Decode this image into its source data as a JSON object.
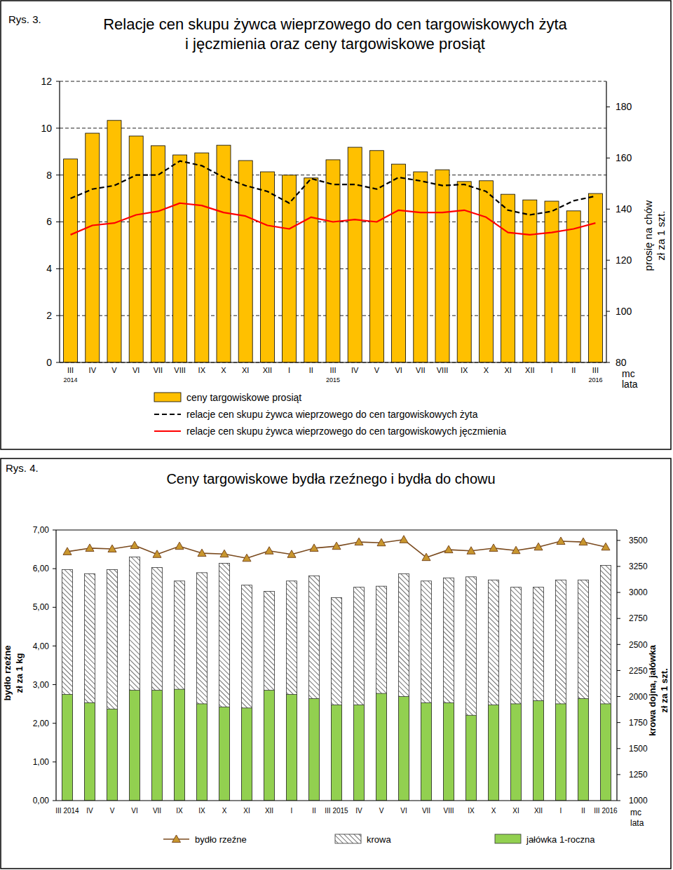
{
  "chart_data": [
    {
      "type": "bar",
      "annotation": "Rys. 3.",
      "title": [
        "Relacje cen skupu żywca wieprzowego do cen targowiskowych żyta",
        "i jęczmienia oraz ceny targowiskowe prosiąt"
      ],
      "categories": [
        "III 2014",
        "IV",
        "V",
        "VI",
        "VII",
        "VIII",
        "IX",
        "X",
        "XI",
        "XII",
        "I",
        "II",
        "III 2015",
        "IV",
        "V",
        "VI",
        "VII",
        "VIII",
        "IX",
        "X",
        "XI",
        "XII",
        "I",
        "II",
        "III 2016"
      ],
      "xlabel": "mc lata",
      "ylim": [
        0,
        12
      ],
      "yticks": [
        0,
        2,
        4,
        6,
        8,
        10,
        12
      ],
      "y2lim": [
        80,
        190
      ],
      "y2ticks": [
        80,
        100,
        120,
        140,
        160,
        180
      ],
      "y2label": [
        "prosię na chów",
        "zł za 1 szt."
      ],
      "grid": true,
      "legend": "bottom",
      "series": [
        {
          "name": "ceny targowiskowe prosiąt",
          "type": "bar",
          "axis": "y2",
          "color": "#ffc000",
          "values": [
            159.6,
            169.7,
            174.7,
            168.6,
            164.8,
            161.2,
            162.0,
            165.0,
            159.0,
            154.6,
            153.3,
            152.2,
            159.3,
            164.2,
            162.9,
            157.6,
            154.6,
            155.4,
            150.8,
            151.1,
            145.8,
            143.6,
            143.1,
            139.3,
            146.1
          ]
        },
        {
          "name": "relacje cen skupu żywca wieprzowego do cen targowiskowych żyta",
          "type": "line",
          "color": "#000000",
          "line_style": "dashed",
          "values": [
            7.0,
            7.4,
            7.55,
            8.0,
            8.0,
            8.6,
            8.4,
            7.9,
            7.55,
            7.3,
            6.8,
            7.85,
            7.6,
            7.6,
            7.4,
            7.9,
            7.75,
            7.55,
            7.6,
            7.3,
            6.5,
            6.3,
            6.45,
            6.9,
            7.1
          ]
        },
        {
          "name": "relacje cen skupu żywca wieprzowego do cen targowiskowych jęczmienia",
          "type": "line",
          "color": "#ff0000",
          "line_style": "solid",
          "values": [
            5.45,
            5.85,
            5.95,
            6.3,
            6.45,
            6.8,
            6.7,
            6.4,
            6.25,
            5.85,
            5.7,
            6.2,
            6.0,
            6.1,
            6.0,
            6.5,
            6.4,
            6.4,
            6.5,
            6.2,
            5.55,
            5.45,
            5.55,
            5.7,
            5.95
          ]
        }
      ]
    },
    {
      "type": "bar",
      "annotation": "Rys. 4.",
      "title": "Ceny targowiskowe bydła rzeźnego i bydła do chowu",
      "categories": [
        "III 2014",
        "IV",
        "V",
        "VI",
        "VII",
        "IX",
        "IX",
        "X",
        "XI",
        "XII",
        "I",
        "II",
        "III 2015",
        "IV",
        "V",
        "VI",
        "VII",
        "VIII",
        "IX",
        "X",
        "XI",
        "XII",
        "I",
        "II",
        "III 2016"
      ],
      "xlabel": "mc lata",
      "ylabel": [
        "bydło rzeźne",
        "zł za 1 kg"
      ],
      "ylim": [
        0,
        7
      ],
      "yticks": [
        {
          "value": 0,
          "label": "0,00"
        },
        {
          "value": 1,
          "label": "1,00"
        },
        {
          "value": 2,
          "label": "2,00"
        },
        {
          "value": 3,
          "label": "3,00"
        },
        {
          "value": 4,
          "label": "4,00"
        },
        {
          "value": 5,
          "label": "5,00"
        },
        {
          "value": 6,
          "label": "6,00"
        },
        {
          "value": 7,
          "label": "7,00"
        }
      ],
      "y2lim": [
        1000,
        3600
      ],
      "y2ticks": [
        1000,
        1250,
        1500,
        1750,
        2000,
        2250,
        2500,
        2750,
        3000,
        3250,
        3500
      ],
      "y2label": [
        "krowa dojna, jałówka",
        "zł za 1 szt."
      ],
      "grid": false,
      "legend": "bottom",
      "series": [
        {
          "name": "bydło rzeźne",
          "type": "line",
          "color": "#7a4a1e",
          "marker": "triangle",
          "line_style": "solid",
          "values": [
            6.44,
            6.53,
            6.51,
            6.6,
            6.37,
            6.58,
            6.4,
            6.38,
            6.27,
            6.46,
            6.37,
            6.53,
            6.58,
            6.69,
            6.67,
            6.75,
            6.29,
            6.49,
            6.46,
            6.53,
            6.47,
            6.56,
            6.71,
            6.69,
            6.56
          ]
        },
        {
          "name": "krowa",
          "type": "bar",
          "axis": "y2",
          "color": "#707070",
          "values": [
            3220,
            3180,
            3220,
            3340,
            3240,
            3110,
            3190,
            3280,
            3070,
            3010,
            3110,
            3160,
            2950,
            3050,
            3060,
            3180,
            3110,
            3140,
            3150,
            3120,
            3050,
            3050,
            3120,
            3120,
            3260
          ]
        },
        {
          "name": "jałówka 1-roczna",
          "type": "bar",
          "axis": "y2",
          "color": "#92d050",
          "values": [
            2020,
            1940,
            1880,
            2060,
            2060,
            2070,
            1930,
            1900,
            1890,
            2060,
            2020,
            1980,
            1920,
            1920,
            2030,
            2000,
            1940,
            1940,
            1820,
            1920,
            1930,
            1960,
            1930,
            1980,
            1930
          ]
        }
      ]
    }
  ]
}
